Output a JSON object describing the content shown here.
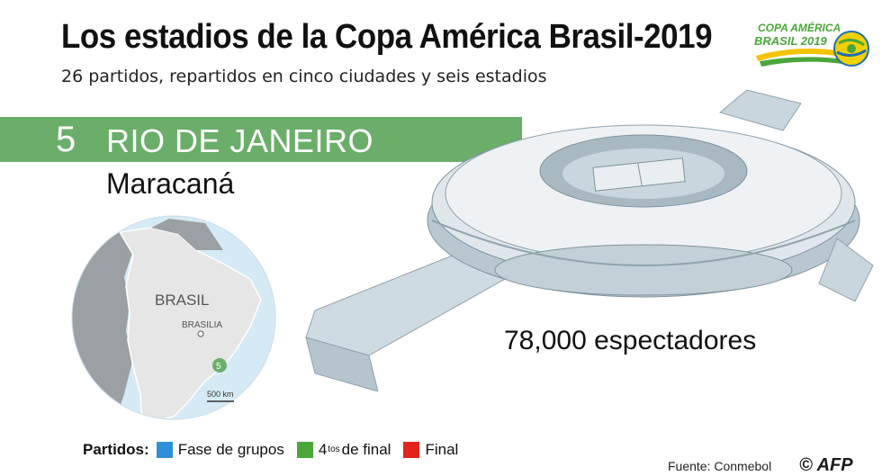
{
  "header": {
    "title": "Los estadios de la Copa América Brasil-2019",
    "subtitle": "26 partidos, repartidos en cinco ciudades y seis estadios"
  },
  "logo": {
    "line1": "COPA AMÉRICA",
    "line2": "BRASIL 2019",
    "icon": "ball-icon"
  },
  "city": {
    "number": "5",
    "name": "RIO DE JANEIRO",
    "stadium": "Maracaná",
    "capacity": "78,000 espectadores"
  },
  "map": {
    "country_label": "BRASIL",
    "capital_label": "BRASILIA",
    "marker_label": "5",
    "scale_label": "500 km"
  },
  "legend": {
    "title": "Partidos:",
    "items": [
      {
        "label": "Fase de grupos",
        "color": "#2f8fd8"
      },
      {
        "label_prefix": "4",
        "label_sup": "tos",
        "label_suffix": "de final",
        "color": "#4aa63a"
      },
      {
        "label": "Final",
        "color": "#e3241b"
      }
    ]
  },
  "footer": {
    "source": "Fuente: Conmebol",
    "copyright": "©",
    "agency": "AFP"
  },
  "colors": {
    "band": "#6aae6a",
    "land": "#9aa0a3",
    "brazil": "#e6e6e6",
    "sea": "#d6eaf6",
    "marker": "#6aae6a"
  }
}
